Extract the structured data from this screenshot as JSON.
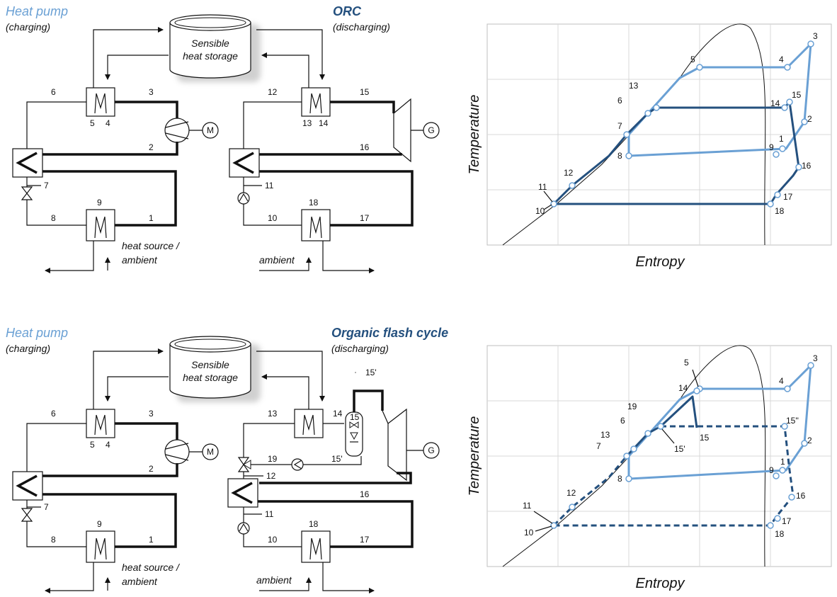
{
  "top": {
    "heat_pump": "Heat pump",
    "charging": "(charging)",
    "storage_line1": "Sensible",
    "storage_line2": "heat storage",
    "cycle_title": "ORC",
    "discharging": "(discharging)",
    "heat_source_line1": "heat source /",
    "heat_source_line2": "ambient",
    "ambient": "ambient",
    "motor": "M",
    "generator": "G",
    "labels": {
      "n1": "1",
      "n2": "2",
      "n3": "3",
      "n4": "4",
      "n5": "5",
      "n6": "6",
      "n7": "7",
      "n8": "8",
      "n9": "9",
      "n10": "10",
      "n11": "11",
      "n12": "12",
      "n13": "13",
      "n14": "14",
      "n15": "15",
      "n16": "16",
      "n17": "17",
      "n18": "18"
    }
  },
  "bottom": {
    "heat_pump": "Heat pump",
    "charging": "(charging)",
    "storage_line1": "Sensible",
    "storage_line2": "heat storage",
    "cycle_title": "Organic flash cycle",
    "discharging": "(discharging)",
    "heat_source_line1": "heat source /",
    "heat_source_line2": "ambient",
    "ambient": "ambient",
    "motor": "M",
    "generator": "G",
    "labels": {
      "n1": "1",
      "n2": "2",
      "n3": "3",
      "n4": "4",
      "n5": "5",
      "n6": "6",
      "n7": "7",
      "n8": "8",
      "n9": "9",
      "n10": "10",
      "n11": "11",
      "n12": "12",
      "n13": "13",
      "n14": "14",
      "n15": "15",
      "n15p": "15'",
      "n15pb": "15'",
      "n16": "16",
      "n17": "17",
      "n18": "18",
      "n19": "19"
    }
  },
  "ts_top": {
    "xlabel": "Entropy",
    "ylabel": "Temperature",
    "labels": {
      "n1": "1",
      "n2": "2",
      "n3": "3",
      "n4": "4",
      "n5": "5",
      "n6": "6",
      "n7": "7",
      "n8": "8",
      "n9": "9",
      "n10": "10",
      "n11": "11",
      "n12": "12",
      "n13": "13",
      "n14": "14",
      "n15": "15",
      "n16": "16",
      "n17": "17",
      "n18": "18"
    }
  },
  "ts_bottom": {
    "xlabel": "Entropy",
    "ylabel": "Temperature",
    "labels": {
      "n1": "1",
      "n2": "2",
      "n3": "3",
      "n4": "4",
      "n5": "5",
      "n6": "6",
      "n7": "7",
      "n8": "8",
      "n9": "9",
      "n10": "10",
      "n11": "11",
      "n12": "12",
      "n13": "13",
      "n14": "14",
      "n15": "15",
      "n15p": "15'",
      "n15pp": "15''",
      "n16": "16",
      "n17": "17",
      "n18": "18",
      "n19": "19"
    }
  },
  "colors": {
    "heat_pump_cycle": "#6aa0d4",
    "orc_cycle": "#24507e"
  }
}
